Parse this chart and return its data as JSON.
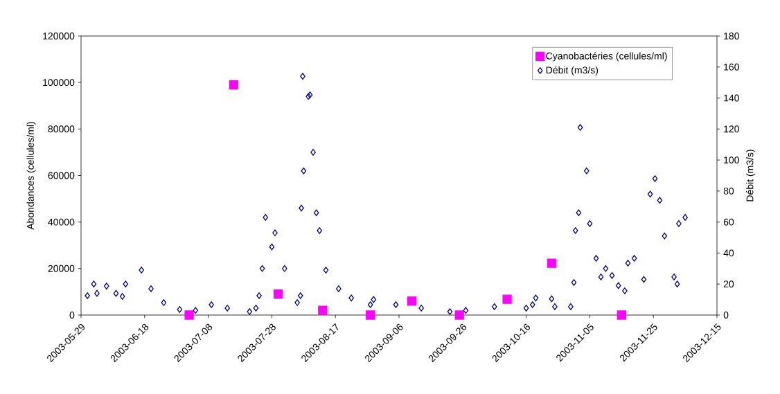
{
  "chart_data": {
    "type": "scatter",
    "xlabel": null,
    "ylabel": "Abondances (cellules/ml)",
    "y2label": "Débit (m3/s)",
    "xlim": [
      "2003-05-29",
      "2003-12-15"
    ],
    "xticks": [
      "2003-05-29",
      "2003-06-18",
      "2003-07-08",
      "2003-07-28",
      "2003-08-17",
      "2003-09-06",
      "2003-09-26",
      "2003-10-16",
      "2003-11-05",
      "2003-11-25",
      "2003-12-15"
    ],
    "ylim": [
      0,
      120000
    ],
    "yticks": [
      0,
      20000,
      40000,
      60000,
      80000,
      100000,
      120000
    ],
    "y2lim": [
      0,
      180
    ],
    "y2ticks": [
      0,
      20,
      40,
      60,
      80,
      100,
      120,
      140,
      160,
      180
    ],
    "grid": false,
    "legend": "top right",
    "series": [
      {
        "name": "Cyanobactéries (cellules/ml)",
        "color": "#ff00ff",
        "marker": "square",
        "x": [
          "2003-07-02",
          "2003-07-16",
          "2003-07-30",
          "2003-08-13",
          "2003-08-28",
          "2003-09-10",
          "2003-09-25",
          "2003-10-10",
          "2003-10-24",
          "2003-11-15"
        ],
        "values": [
          0,
          99000,
          9000,
          2000,
          0,
          6000,
          0,
          6800,
          22300,
          0
        ]
      },
      {
        "name": "Débit (m3/s)",
        "color": "#000080",
        "marker": "diamond",
        "axis": "y2",
        "x": [
          "2003-05-31",
          "2003-06-02",
          "2003-06-03",
          "2003-06-06",
          "2003-06-09",
          "2003-06-11",
          "2003-06-12",
          "2003-06-17",
          "2003-06-20",
          "2003-06-24",
          "2003-06-29",
          "2003-07-04",
          "2003-07-09",
          "2003-07-14",
          "2003-07-21",
          "2003-07-23",
          "2003-07-24",
          "2003-07-25",
          "2003-07-26",
          "2003-07-28",
          "2003-07-29",
          "2003-08-01",
          "2003-08-05",
          "2003-08-06T00:00",
          "2003-08-06T07:00",
          "2003-08-06T17:00",
          "2003-08-07",
          "2003-08-08T12:00",
          "2003-08-09",
          "2003-08-10",
          "2003-08-11",
          "2003-08-12",
          "2003-08-14",
          "2003-08-18",
          "2003-08-22",
          "2003-08-28",
          "2003-08-29",
          "2003-09-05",
          "2003-09-13",
          "2003-09-22",
          "2003-09-27",
          "2003-10-06",
          "2003-10-16",
          "2003-10-18",
          "2003-10-19",
          "2003-10-24",
          "2003-10-25",
          "2003-10-30",
          "2003-10-31",
          "2003-10-31T12:00",
          "2003-11-01T12:00",
          "2003-11-02",
          "2003-11-04",
          "2003-11-05",
          "2003-11-07",
          "2003-11-08T12:00",
          "2003-11-10",
          "2003-11-12",
          "2003-11-14",
          "2003-11-16",
          "2003-11-17",
          "2003-11-19",
          "2003-11-22",
          "2003-11-24",
          "2003-11-25T12:00",
          "2003-11-27",
          "2003-11-28T12:00",
          "2003-12-01T12:00",
          "2003-12-02T12:00",
          "2003-12-03",
          "2003-12-05"
        ],
        "values": [
          12.5,
          20,
          14,
          18.7,
          14,
          12,
          20,
          29,
          17,
          8,
          3.6,
          3,
          6.7,
          4.5,
          2.2,
          4.5,
          12.5,
          30,
          63,
          44,
          53,
          30,
          8,
          12.5,
          69,
          154,
          93,
          141,
          142,
          105,
          66,
          54.5,
          29,
          17,
          11,
          6.7,
          10,
          6.7,
          4.5,
          2.2,
          3,
          5.4,
          4.5,
          6.7,
          11,
          10.5,
          5.4,
          5.4,
          21,
          54.5,
          66,
          121,
          93,
          59,
          36.6,
          24.6,
          30,
          25.5,
          19,
          15.6,
          33.5,
          36.6,
          23,
          78,
          88,
          74,
          51,
          24.6,
          20,
          59,
          63
        ]
      }
    ]
  }
}
